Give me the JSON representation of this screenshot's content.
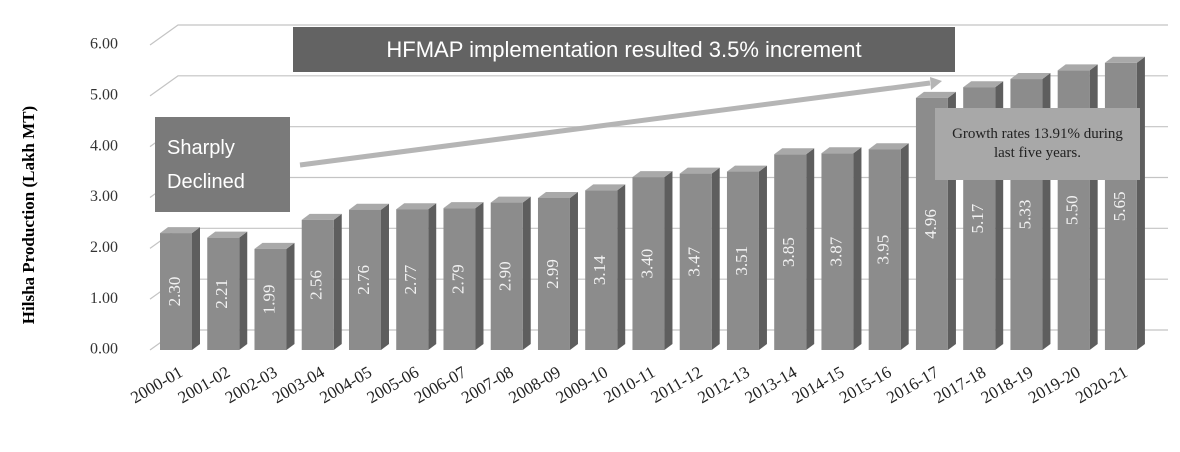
{
  "chart_data": {
    "type": "bar3d",
    "y_label": "Hilsha Production (Lakh MT)",
    "categories": [
      "2000-01",
      "2001-02",
      "2002-03",
      "2003-04",
      "2004-05",
      "2005-06",
      "2006-07",
      "2007-08",
      "2008-09",
      "2009-10",
      "2010-11",
      "2011-12",
      "2012-13",
      "2013-14",
      "2014-15",
      "2015-16",
      "2016-17",
      "2017-18",
      "2018-19",
      "2019-20",
      "2020-21"
    ],
    "values": [
      2.3,
      2.21,
      1.99,
      2.56,
      2.76,
      2.77,
      2.79,
      2.9,
      2.99,
      3.14,
      3.4,
      3.47,
      3.51,
      3.85,
      3.87,
      3.95,
      4.96,
      5.17,
      5.33,
      5.5,
      5.65
    ],
    "value_labels": [
      "2.30",
      "2.21",
      "1.99",
      "2.56",
      "2.76",
      "2.77",
      "2.79",
      "2.90",
      "2.99",
      "3.14",
      "3.40",
      "3.47",
      "3.51",
      "3.85",
      "3.87",
      "3.95",
      "4.96",
      "5.17",
      "5.33",
      "5.50",
      "5.65"
    ],
    "color": "#8c8c8c",
    "ylim": [
      0,
      6
    ],
    "yticks": [
      {
        "value": 0,
        "label": "0.00"
      },
      {
        "value": 1,
        "label": "1.00"
      },
      {
        "value": 2,
        "label": "2.00"
      },
      {
        "value": 3,
        "label": "3.00"
      },
      {
        "value": 4,
        "label": "4.00"
      },
      {
        "value": 5,
        "label": "5.00"
      },
      {
        "value": 6,
        "label": "6.00"
      }
    ],
    "grid": true,
    "annotations": [
      "HFMAP implementation resulted 3.5% increment",
      "Sharply Declined",
      "Growth rates 13.91% during last five years."
    ]
  }
}
